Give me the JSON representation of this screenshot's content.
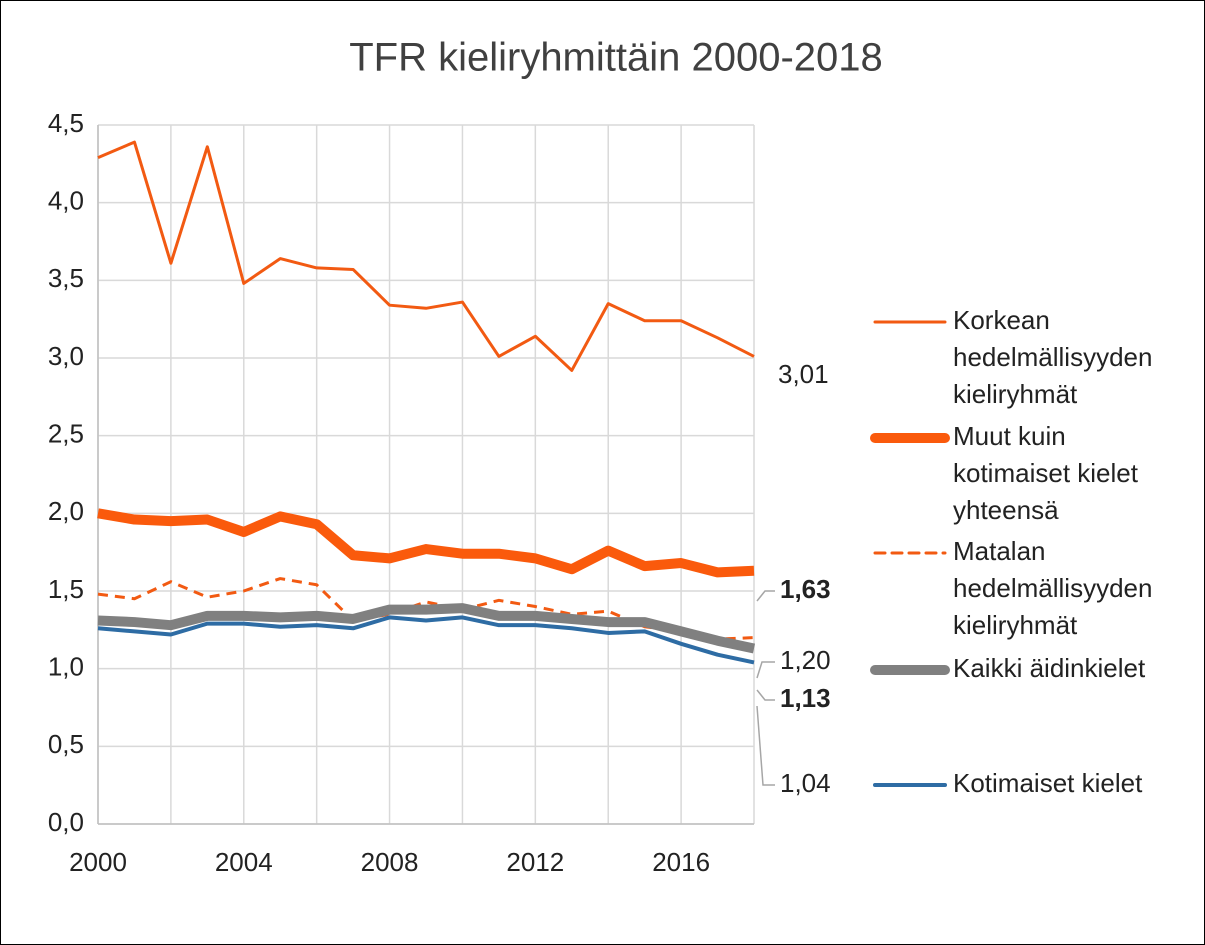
{
  "chart_data": {
    "type": "line",
    "title": "TFR kieliryhmittäin 2000-2018",
    "x": [
      2000,
      2001,
      2002,
      2003,
      2004,
      2005,
      2006,
      2007,
      2008,
      2009,
      2010,
      2011,
      2012,
      2013,
      2014,
      2015,
      2016,
      2017,
      2018
    ],
    "xlim": [
      2000,
      2018
    ],
    "xticks": [
      2000,
      2004,
      2008,
      2012,
      2016
    ],
    "minor_xticks": [
      2002,
      2006,
      2010,
      2014,
      2018
    ],
    "ylim": [
      0,
      4.5
    ],
    "yticks": [
      {
        "value": 0,
        "label": "0,0"
      },
      {
        "value": 0.5,
        "label": "0,5"
      },
      {
        "value": 1,
        "label": "1,0"
      },
      {
        "value": 1.5,
        "label": "1,5"
      },
      {
        "value": 2,
        "label": "2,0"
      },
      {
        "value": 2.5,
        "label": "2,5"
      },
      {
        "value": 3,
        "label": "3,0"
      },
      {
        "value": 3.5,
        "label": "3,5"
      },
      {
        "value": 4,
        "label": "4,0"
      },
      {
        "value": 4.5,
        "label": "4,5"
      }
    ],
    "grid": true,
    "legend": "right",
    "series": [
      {
        "name": "Korkean hedelmällisyyden kieliryhmät",
        "color": "#f25a12",
        "width": 3,
        "dashed": false,
        "bold_label": false,
        "values": [
          4.29,
          4.39,
          3.61,
          4.36,
          3.48,
          3.64,
          3.58,
          3.57,
          3.34,
          3.32,
          3.36,
          3.01,
          3.14,
          2.92,
          3.35,
          3.24,
          3.24,
          3.13,
          3.01
        ],
        "value_labels": [
          null,
          null,
          null,
          null,
          null,
          null,
          null,
          null,
          null,
          null,
          null,
          null,
          null,
          null,
          null,
          null,
          null,
          null,
          "3,01"
        ]
      },
      {
        "name": "Muut kuin kotimaiset kielet yhteensä",
        "color": "#fa5a0c",
        "width": 10,
        "dashed": false,
        "bold_label": true,
        "values": [
          2.0,
          1.96,
          1.95,
          1.96,
          1.88,
          1.98,
          1.93,
          1.73,
          1.71,
          1.77,
          1.74,
          1.74,
          1.71,
          1.64,
          1.76,
          1.66,
          1.68,
          1.62,
          1.63
        ],
        "value_labels": [
          null,
          null,
          null,
          null,
          null,
          null,
          null,
          null,
          null,
          null,
          null,
          null,
          null,
          null,
          null,
          null,
          null,
          null,
          "1,63"
        ]
      },
      {
        "name": "Matalan hedelmällisyyden kieliryhmät",
        "color": "#f25a12",
        "width": 3,
        "dashed": true,
        "bold_label": false,
        "values": [
          1.48,
          1.45,
          1.56,
          1.46,
          1.5,
          1.58,
          1.54,
          1.31,
          1.35,
          1.43,
          1.38,
          1.44,
          1.4,
          1.35,
          1.37,
          1.27,
          1.24,
          1.19,
          1.2
        ],
        "value_labels": [
          null,
          null,
          null,
          null,
          null,
          null,
          null,
          null,
          null,
          null,
          null,
          null,
          null,
          null,
          null,
          null,
          null,
          null,
          "1,20"
        ]
      },
      {
        "name": "Kaikki äidinkielet",
        "color": "#808080",
        "width": 10,
        "dashed": false,
        "bold_label": true,
        "values": [
          1.31,
          1.3,
          1.28,
          1.34,
          1.34,
          1.33,
          1.34,
          1.32,
          1.38,
          1.38,
          1.39,
          1.34,
          1.34,
          1.32,
          1.3,
          1.3,
          1.24,
          1.18,
          1.13
        ],
        "value_labels": [
          null,
          null,
          null,
          null,
          null,
          null,
          null,
          null,
          null,
          null,
          null,
          null,
          null,
          null,
          null,
          null,
          null,
          null,
          "1,13"
        ]
      },
      {
        "name": "Kotimaiset kielet",
        "color": "#2e6ca4",
        "width": 4,
        "dashed": false,
        "bold_label": false,
        "values": [
          1.26,
          1.24,
          1.22,
          1.29,
          1.29,
          1.27,
          1.28,
          1.26,
          1.33,
          1.31,
          1.33,
          1.28,
          1.28,
          1.26,
          1.23,
          1.24,
          1.16,
          1.09,
          1.04
        ],
        "value_labels": [
          null,
          null,
          null,
          null,
          null,
          null,
          null,
          null,
          null,
          null,
          null,
          null,
          null,
          null,
          null,
          null,
          null,
          null,
          "1,04"
        ]
      }
    ]
  }
}
